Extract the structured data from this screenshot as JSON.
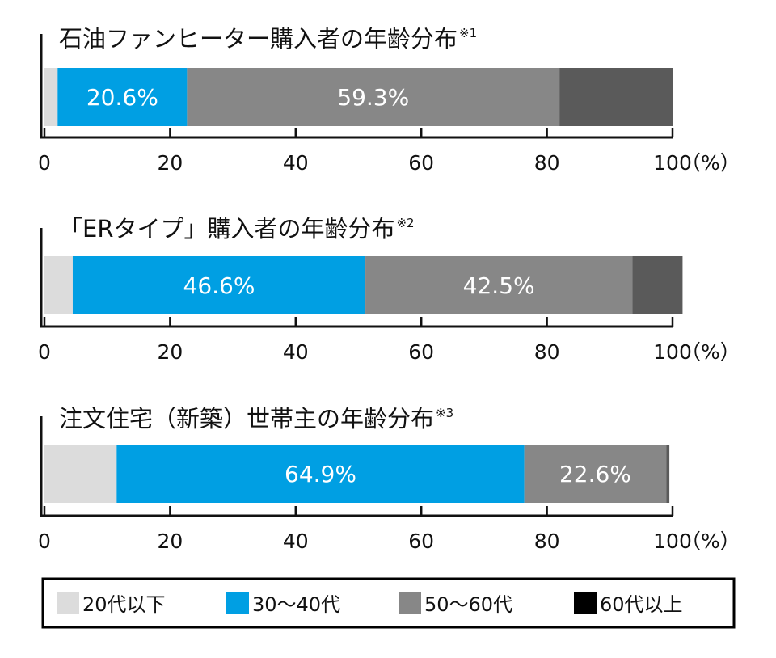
{
  "chart_data": [
    {
      "type": "bar",
      "orientation": "horizontal-stacked",
      "title": "石油ファンヒーター購入者の年齢分布",
      "note": "※1",
      "categories": [
        "20代以下",
        "30〜40代",
        "50〜60代",
        "60代以上"
      ],
      "values": [
        2.1,
        20.6,
        59.3,
        18.0
      ],
      "value_labels": [
        "",
        "20.6%",
        "59.3%",
        ""
      ],
      "xlim": [
        0,
        100
      ],
      "xticks": [
        "0",
        "20",
        "40",
        "60",
        "80",
        "100"
      ],
      "unit": "（%）"
    },
    {
      "type": "bar",
      "orientation": "horizontal-stacked",
      "title": "「ERタイプ」購入者の年齢分布",
      "note": "※2",
      "categories": [
        "20代以下",
        "30〜40代",
        "50〜60代",
        "60代以上"
      ],
      "values": [
        4.5,
        46.6,
        42.5,
        8.0
      ],
      "value_labels": [
        "",
        "46.6%",
        "42.5%",
        ""
      ],
      "xlim": [
        0,
        100
      ],
      "xticks": [
        "0",
        "20",
        "40",
        "60",
        "80",
        "100"
      ],
      "unit": "（%）"
    },
    {
      "type": "bar",
      "orientation": "horizontal-stacked",
      "title": "注文住宅（新築）世帯主の年齢分布",
      "note": "※3",
      "categories": [
        "20代以下",
        "30〜40代",
        "50〜60代",
        "60代以上"
      ],
      "values": [
        11.5,
        64.9,
        22.6,
        0.5
      ],
      "value_labels": [
        "",
        "64.9%",
        "22.6%",
        ""
      ],
      "xlim": [
        0,
        100
      ],
      "xticks": [
        "0",
        "20",
        "40",
        "60",
        "80",
        "100"
      ],
      "unit": "（%）"
    }
  ],
  "legend": [
    {
      "label": "20代以下",
      "color": "#dcdcdc"
    },
    {
      "label": "30〜40代",
      "color": "#009fe3"
    },
    {
      "label": "50〜60代",
      "color": "#878787"
    },
    {
      "label": "60代以上",
      "color": "#000000"
    }
  ],
  "colors": {
    "seg": [
      "#dcdcdc",
      "#009fe3",
      "#878787",
      "#5a5a5a"
    ],
    "axis": "#111111"
  }
}
